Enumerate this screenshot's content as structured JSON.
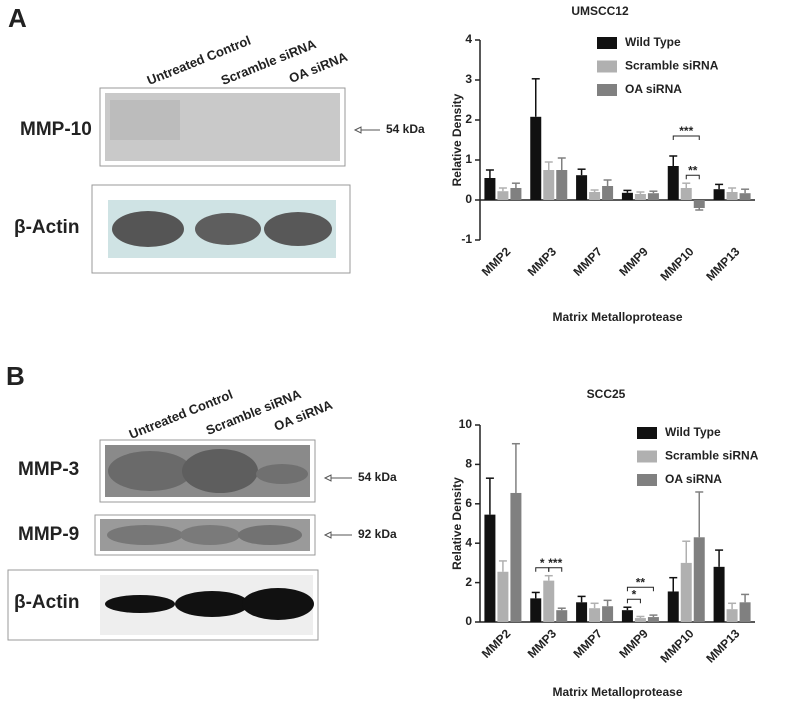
{
  "panel_labels": [
    "A",
    "B"
  ],
  "blots": [
    {
      "lanes": [
        "Untreated Control",
        "Scramble siRNA",
        "OA siRNA"
      ],
      "rows": [
        {
          "label": "MMP-10",
          "kda": "54 kDa"
        },
        {
          "label": "β-Actin"
        }
      ]
    },
    {
      "lanes": [
        "Untreated Control",
        "Scramble siRNA",
        "OA siRNA"
      ],
      "rows": [
        {
          "label": "MMP-3",
          "kda": "54 kDa"
        },
        {
          "label": "MMP-9",
          "kda": "92 kDa"
        },
        {
          "label": "β-Actin"
        }
      ]
    }
  ],
  "chart_data": [
    {
      "type": "bar",
      "title": "UMSCC12",
      "x_label": "Matrix Metalloprotease",
      "y_label": "Relative Density",
      "categories": [
        "MMP2",
        "MMP3",
        "MMP7",
        "MMP9",
        "MMP10",
        "MMP13"
      ],
      "series": [
        {
          "name": "Wild Type",
          "color": "#111111",
          "values": [
            0.55,
            2.08,
            0.62,
            0.18,
            0.85,
            0.27
          ],
          "errors": [
            0.2,
            0.95,
            0.15,
            0.06,
            0.25,
            0.12
          ]
        },
        {
          "name": "Scramble siRNA",
          "color": "#b0b0b0",
          "values": [
            0.22,
            0.75,
            0.2,
            0.15,
            0.3,
            0.2
          ],
          "errors": [
            0.08,
            0.2,
            0.05,
            0.05,
            0.12,
            0.1
          ]
        },
        {
          "name": "OA siRNA",
          "color": "#808080",
          "values": [
            0.3,
            0.75,
            0.35,
            0.17,
            -0.2,
            0.17
          ],
          "errors": [
            0.12,
            0.3,
            0.15,
            0.05,
            0.05,
            0.1
          ]
        }
      ],
      "ylim": [
        -1,
        4
      ],
      "yticks": [
        -1,
        0,
        1,
        2,
        3,
        4
      ],
      "annotations": [
        {
          "text": "***",
          "category": "MMP10",
          "series": [
            "Wild Type",
            "OA siRNA"
          ]
        },
        {
          "text": "**",
          "category": "MMP10",
          "series": [
            "Scramble siRNA",
            "OA siRNA"
          ]
        }
      ]
    },
    {
      "type": "bar",
      "title": "SCC25",
      "x_label": "Matrix Metalloprotease",
      "y_label": "Relative Density",
      "categories": [
        "MMP2",
        "MMP3",
        "MMP7",
        "MMP9",
        "MMP10",
        "MMP13"
      ],
      "series": [
        {
          "name": "Wild Type",
          "color": "#111111",
          "values": [
            5.45,
            1.2,
            1.0,
            0.6,
            1.55,
            2.8
          ],
          "errors": [
            1.85,
            0.3,
            0.3,
            0.15,
            0.7,
            0.85
          ]
        },
        {
          "name": "Scramble siRNA",
          "color": "#b0b0b0",
          "values": [
            2.55,
            2.1,
            0.7,
            0.2,
            3.0,
            0.65
          ],
          "errors": [
            0.55,
            0.25,
            0.25,
            0.08,
            1.1,
            0.3
          ]
        },
        {
          "name": "OA siRNA",
          "color": "#808080",
          "values": [
            6.55,
            0.6,
            0.8,
            0.25,
            4.3,
            1.0
          ],
          "errors": [
            2.5,
            0.1,
            0.3,
            0.1,
            2.3,
            0.4
          ]
        }
      ],
      "ylim": [
        0,
        10
      ],
      "yticks": [
        0,
        2,
        4,
        6,
        8,
        10
      ],
      "annotations": [
        {
          "text": "*",
          "category": "MMP3",
          "series": [
            "Wild Type",
            "Scramble siRNA"
          ]
        },
        {
          "text": "***",
          "category": "MMP3",
          "series": [
            "Scramble siRNA",
            "OA siRNA"
          ]
        },
        {
          "text": "*",
          "category": "MMP9",
          "series": [
            "Wild Type",
            "Scramble siRNA"
          ]
        },
        {
          "text": "**",
          "category": "MMP9",
          "series": [
            "Wild Type",
            "OA siRNA"
          ]
        }
      ]
    }
  ]
}
